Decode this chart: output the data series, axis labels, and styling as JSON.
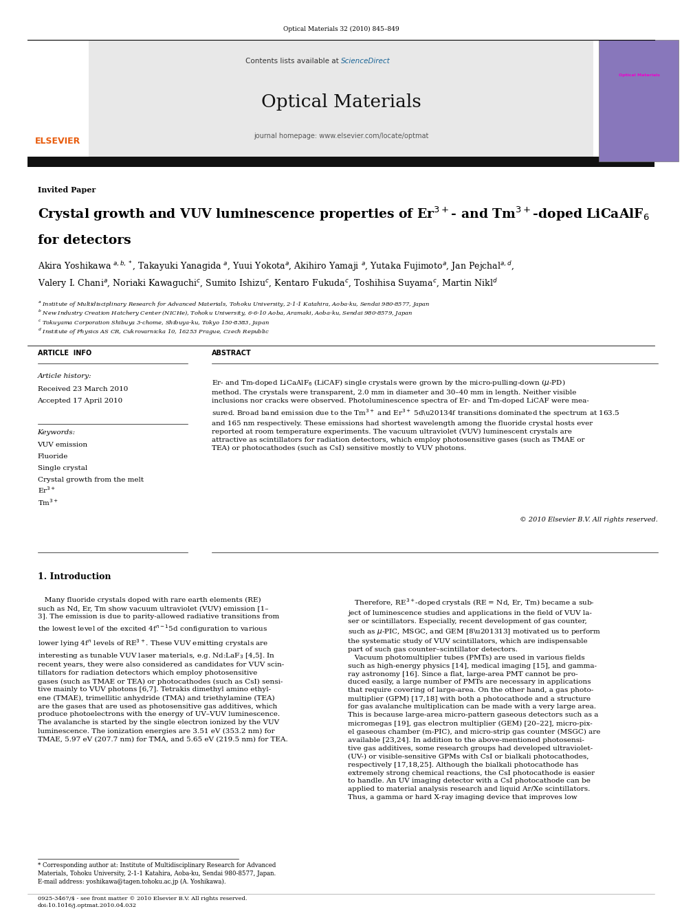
{
  "page_width": 9.92,
  "page_height": 13.23,
  "bg_color": "#ffffff",
  "journal_ref": "Optical Materials 32 (2010) 845–849",
  "header_bg": "#e8e8e8",
  "sciencedirect_color": "#1a6496",
  "journal_title": "Optical Materials",
  "journal_homepage": "journal homepage: www.elsevier.com/locate/optmat",
  "elsevier_color": "#e85c0d",
  "invited_paper": "Invited Paper",
  "article_info_title": "ARTICLE  INFO",
  "abstract_title": "ABSTRACT",
  "article_history_label": "Article history:",
  "received": "Received 23 March 2010",
  "accepted": "Accepted 17 April 2010",
  "keywords_label": "Keywords:",
  "keywords": [
    "VUV emission",
    "Fluoride",
    "Single crystal",
    "Crystal growth from the melt",
    "Er$^{3+}$",
    "Tm$^{3+}$"
  ],
  "copyright": "© 2010 Elsevier B.V. All rights reserved.",
  "footer_issn": "0925-3467/$ - see front matter © 2010 Elsevier B.V. All rights reserved.",
  "footer_doi": "doi:10.1016/j.optmat.2010.04.032"
}
